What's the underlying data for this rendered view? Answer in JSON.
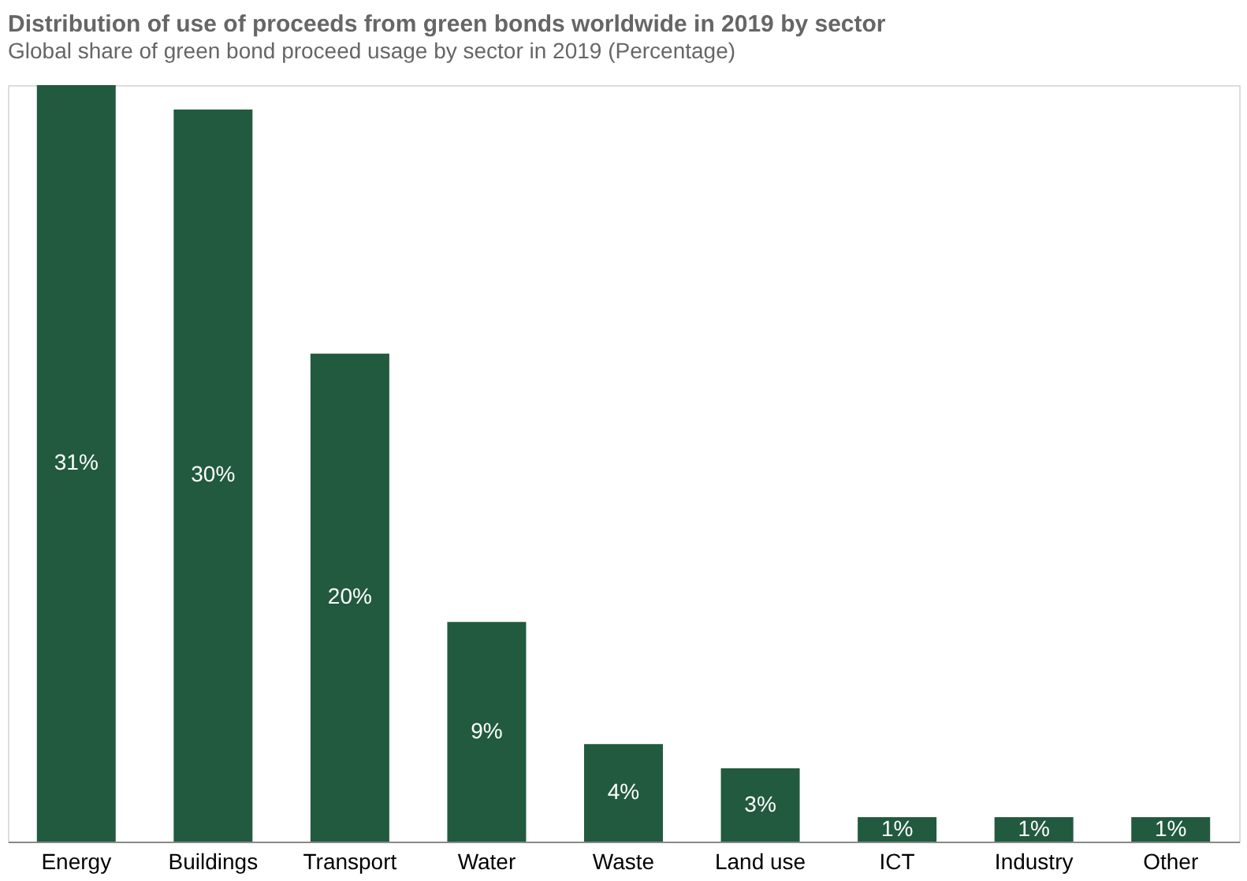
{
  "chart_data": {
    "type": "bar",
    "title": "Distribution of use of proceeds from green bonds worldwide in 2019 by sector",
    "subtitle": "Global share of green bond proceed usage by sector in 2019 (Percentage)",
    "categories": [
      "Energy",
      "Buildings",
      "Transport",
      "Water",
      "Waste",
      "Land use",
      "ICT",
      "Industry",
      "Other"
    ],
    "values": [
      31,
      30,
      20,
      9,
      4,
      3,
      1,
      1,
      1
    ],
    "value_labels": [
      "31%",
      "30%",
      "20%",
      "9%",
      "4%",
      "3%",
      "1%",
      "1%",
      "1%"
    ],
    "color": "#215a3f",
    "grid": false
  }
}
